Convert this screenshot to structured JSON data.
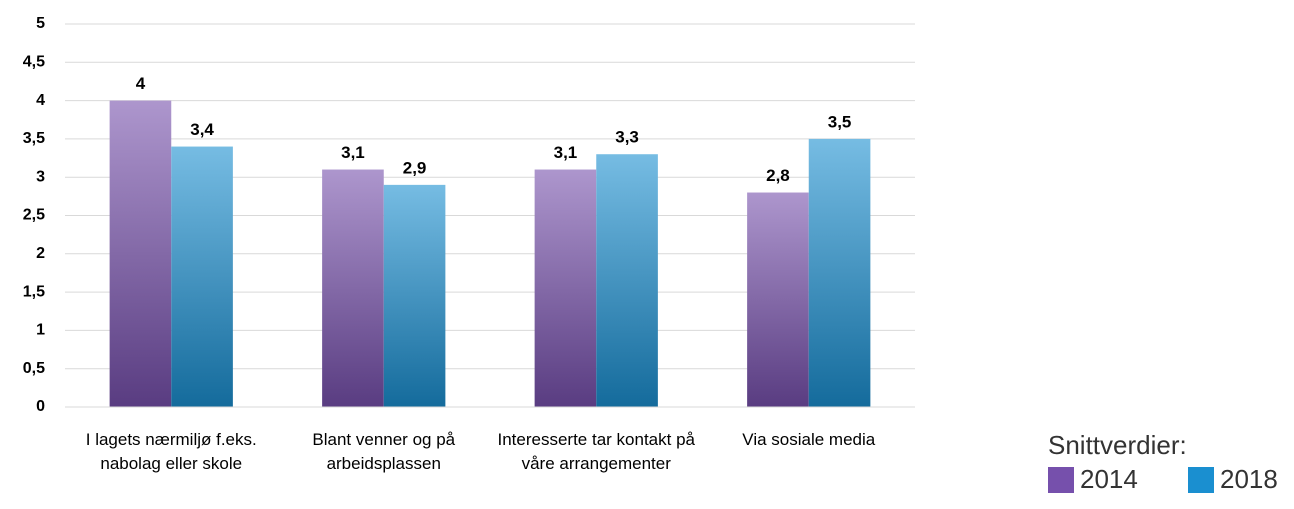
{
  "chart_data": {
    "type": "bar",
    "categories": [
      "I lagets nærmiljø f.eks. nabolag eller skole",
      "Blant venner og på arbeidsplassen",
      "Interesserte tar kontakt på våre arrangementer",
      "Via sosiale media"
    ],
    "series": [
      {
        "name": "2014",
        "color": "#7650ac",
        "values": [
          4,
          3.1,
          3.1,
          2.8
        ],
        "value_labels": [
          "4",
          "3,1",
          "3,1",
          "2,8"
        ]
      },
      {
        "name": "2018",
        "color": "#1a8fd0",
        "values": [
          3.4,
          2.9,
          3.3,
          3.5
        ],
        "value_labels": [
          "3,4",
          "2,9",
          "3,3",
          "3,5"
        ]
      }
    ],
    "ylim": [
      0,
      5
    ],
    "yticks": [
      0,
      {
        "value": 0.5,
        "label": "0,5"
      },
      1,
      {
        "value": 1.5,
        "label": "1,5"
      },
      2,
      {
        "value": 2.5,
        "label": "2,5"
      },
      3,
      {
        "value": 3.5,
        "label": "3,5"
      },
      4,
      {
        "value": 4.5,
        "label": "4,5"
      },
      5
    ],
    "grid": true,
    "legend_title": "Snittverdier:",
    "legend": "bottom-right"
  }
}
